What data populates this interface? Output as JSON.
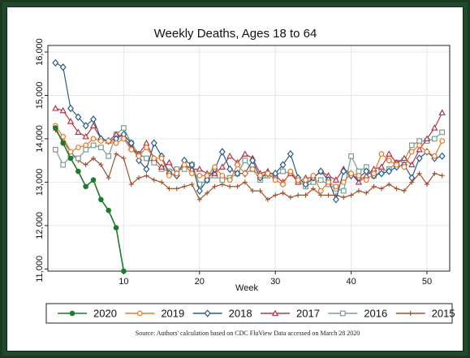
{
  "chart_data": {
    "type": "line",
    "title": "Weekly Deaths, Ages 18 to 64",
    "xlabel": "Week",
    "ylabel": "",
    "xlim": [
      0,
      53
    ],
    "ylim": [
      10950,
      16150
    ],
    "xticks": [
      10,
      20,
      30,
      40,
      50
    ],
    "yticks": [
      11000,
      12000,
      13000,
      14000,
      15000,
      16000
    ],
    "ytick_labels": [
      "11,000",
      "12,000",
      "13,000",
      "14,000",
      "15,000",
      "16,000"
    ],
    "grid": true,
    "legend_position": "bottom",
    "source": "Source: Authors' calculation based on CDC FluView Data accessed on March 28 2020",
    "series": [
      {
        "name": "2015",
        "color": "#a0522d",
        "marker": "plus",
        "x": [
          1,
          2,
          3,
          4,
          5,
          6,
          7,
          8,
          9,
          10,
          11,
          12,
          13,
          14,
          15,
          16,
          17,
          18,
          19,
          20,
          21,
          22,
          23,
          24,
          25,
          26,
          27,
          28,
          29,
          30,
          31,
          32,
          33,
          34,
          35,
          36,
          37,
          38,
          39,
          40,
          41,
          42,
          43,
          44,
          45,
          46,
          47,
          48,
          49,
          50,
          51,
          52
        ],
        "values": [
          14200,
          13950,
          13700,
          13500,
          13400,
          13550,
          13400,
          13100,
          13650,
          13550,
          12950,
          13100,
          13150,
          13050,
          13000,
          12850,
          12850,
          12900,
          12950,
          12600,
          12750,
          12900,
          12950,
          12900,
          12900,
          13000,
          12800,
          12800,
          12600,
          12700,
          12750,
          12650,
          12700,
          12700,
          12850,
          12700,
          12700,
          12700,
          12650,
          12700,
          12800,
          12750,
          12900,
          12850,
          12950,
          12850,
          12800,
          13000,
          13200,
          12950,
          13200,
          13150
        ]
      },
      {
        "name": "2016",
        "color": "#7a9e8e",
        "marker": "square",
        "x": [
          1,
          2,
          3,
          4,
          5,
          6,
          7,
          8,
          9,
          10,
          11,
          12,
          13,
          14,
          15,
          16,
          17,
          18,
          19,
          20,
          21,
          22,
          23,
          24,
          25,
          26,
          27,
          28,
          29,
          30,
          31,
          32,
          33,
          34,
          35,
          36,
          37,
          38,
          39,
          40,
          41,
          42,
          43,
          44,
          45,
          46,
          47,
          48,
          49,
          50,
          51,
          52
        ],
        "values": [
          13750,
          13400,
          13600,
          13550,
          13750,
          13850,
          13800,
          13600,
          14100,
          14250,
          13900,
          13650,
          13550,
          13450,
          13300,
          13250,
          13300,
          13300,
          13400,
          12950,
          13050,
          13150,
          13050,
          13100,
          13200,
          13500,
          13300,
          13050,
          13150,
          13150,
          13250,
          13200,
          13050,
          12900,
          13000,
          13050,
          12950,
          12850,
          12800,
          13600,
          13250,
          13350,
          13150,
          13250,
          13300,
          13450,
          13500,
          13850,
          13950,
          13950,
          14000,
          14150
        ]
      },
      {
        "name": "2017",
        "color": "#b0394b",
        "marker": "triangle",
        "x": [
          1,
          2,
          3,
          4,
          5,
          6,
          7,
          8,
          9,
          10,
          11,
          12,
          13,
          14,
          15,
          16,
          17,
          18,
          19,
          20,
          21,
          22,
          23,
          24,
          25,
          26,
          27,
          28,
          29,
          30,
          31,
          32,
          33,
          34,
          35,
          36,
          37,
          38,
          39,
          40,
          41,
          42,
          43,
          44,
          45,
          46,
          47,
          48,
          49,
          50,
          51,
          52
        ],
        "values": [
          14700,
          14650,
          14400,
          14150,
          14050,
          14300,
          14000,
          13950,
          14100,
          14050,
          13800,
          13650,
          13900,
          13550,
          13350,
          13450,
          13200,
          13400,
          13300,
          13300,
          13200,
          13200,
          13350,
          13600,
          13450,
          13650,
          13550,
          13200,
          13250,
          13150,
          13000,
          13200,
          13000,
          13100,
          13100,
          13250,
          13150,
          13050,
          13300,
          13200,
          13000,
          13150,
          13300,
          13350,
          13650,
          13450,
          13550,
          13400,
          13750,
          14000,
          14250,
          14600
        ]
      },
      {
        "name": "2018",
        "color": "#2b5c8a",
        "marker": "diamond",
        "x": [
          1,
          2,
          3,
          4,
          5,
          6,
          7,
          8,
          9,
          10,
          11,
          12,
          13,
          14,
          15,
          16,
          17,
          18,
          19,
          20,
          21,
          22,
          23,
          24,
          25,
          26,
          27,
          28,
          29,
          30,
          31,
          32,
          33,
          34,
          35,
          36,
          37,
          38,
          39,
          40,
          41,
          42,
          43,
          44,
          45,
          46,
          47,
          48,
          49,
          50,
          51,
          52
        ],
        "values": [
          15750,
          15650,
          14700,
          14500,
          14300,
          14450,
          14000,
          13950,
          14000,
          14100,
          13900,
          13500,
          13300,
          13900,
          13600,
          13200,
          13150,
          13500,
          13400,
          12800,
          13050,
          13300,
          13700,
          13300,
          13200,
          13200,
          13500,
          13100,
          13200,
          13200,
          13400,
          13650,
          13100,
          12950,
          13100,
          13250,
          13050,
          12600,
          13250,
          13150,
          13100,
          13250,
          13150,
          13200,
          13250,
          13350,
          13400,
          13100,
          13550,
          13700,
          13550,
          13600
        ]
      },
      {
        "name": "2019",
        "color": "#e8782a",
        "marker": "circle",
        "x": [
          1,
          2,
          3,
          4,
          5,
          6,
          7,
          8,
          9,
          10,
          11,
          12,
          13,
          14,
          15,
          16,
          17,
          18,
          19,
          20,
          21,
          22,
          23,
          24,
          25,
          26,
          27,
          28,
          29,
          30,
          31,
          32,
          33,
          34,
          35,
          36,
          37,
          38,
          39,
          40,
          41,
          42,
          43,
          44,
          45,
          46,
          47,
          48,
          49,
          50,
          51,
          52
        ],
        "values": [
          14300,
          14050,
          13700,
          13800,
          13850,
          14000,
          13950,
          13950,
          13900,
          14000,
          13750,
          13600,
          13800,
          13550,
          13550,
          13150,
          13200,
          13400,
          13200,
          13150,
          13150,
          13350,
          13150,
          13050,
          13400,
          13200,
          13300,
          13150,
          13200,
          13050,
          12950,
          13250,
          13050,
          13050,
          13150,
          12800,
          13000,
          12900,
          13000,
          13200,
          13150,
          13050,
          13200,
          13650,
          13500,
          13400,
          13350,
          13700,
          13850,
          13700,
          13600,
          13950
        ]
      },
      {
        "name": "2020",
        "color": "#1e7a2e",
        "marker": "dot",
        "x": [
          1,
          2,
          3,
          4,
          5,
          6,
          7,
          8,
          9,
          10
        ],
        "values": [
          14250,
          13900,
          13550,
          13250,
          12900,
          13050,
          12600,
          12350,
          11950,
          10950
        ]
      }
    ]
  }
}
